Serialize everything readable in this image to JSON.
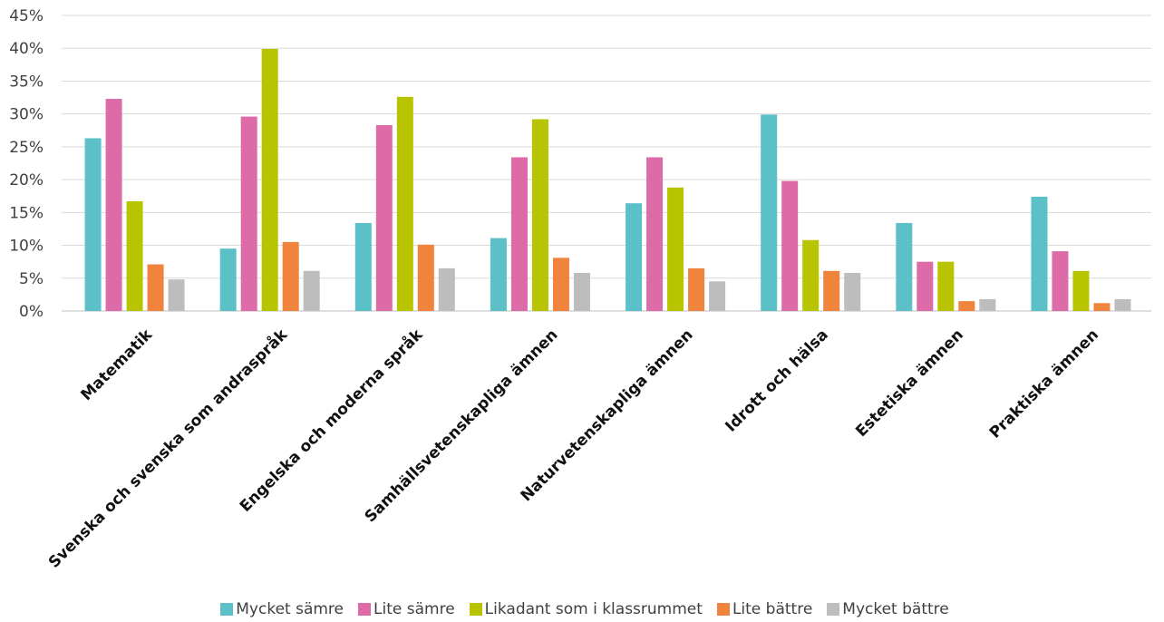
{
  "chart_data": {
    "type": "bar",
    "categories": [
      "Matematik",
      "Svenska och svenska som andraspråk",
      "Engelska och moderna språk",
      "Samhällsvetenskapliga ämnen",
      "Naturvetenskapliga ämnen",
      "Idrott och hälsa",
      "Estetiska ämnen",
      "Praktiska ämnen"
    ],
    "series": [
      {
        "name": "Mycket sämre",
        "color": "#5BC0C8",
        "values": [
          26.3,
          9.5,
          13.4,
          11.1,
          16.4,
          29.9,
          13.4,
          17.4
        ]
      },
      {
        "name": "Lite sämre",
        "color": "#DD6BA8",
        "values": [
          32.3,
          29.6,
          28.3,
          23.4,
          23.4,
          19.8,
          7.5,
          9.1
        ]
      },
      {
        "name": "Likadant som i klassrummet",
        "color": "#B8C400",
        "values": [
          16.7,
          39.9,
          32.6,
          29.2,
          18.8,
          10.8,
          7.5,
          6.1
        ]
      },
      {
        "name": "Lite bättre",
        "color": "#F0843C",
        "values": [
          7.1,
          10.5,
          10.1,
          8.1,
          6.5,
          6.1,
          1.5,
          1.2
        ]
      },
      {
        "name": "Mycket bättre",
        "color": "#BDBDBD",
        "values": [
          4.8,
          6.1,
          6.5,
          5.8,
          4.5,
          5.8,
          1.8,
          1.8
        ]
      }
    ],
    "yticks": [
      "0%",
      "5%",
      "10%",
      "15%",
      "20%",
      "25%",
      "30%",
      "35%",
      "40%",
      "45%"
    ],
    "ylim": [
      0,
      45
    ],
    "ylabel": "",
    "xlabel": "",
    "title": "",
    "grid": true,
    "legend_position": "bottom"
  }
}
